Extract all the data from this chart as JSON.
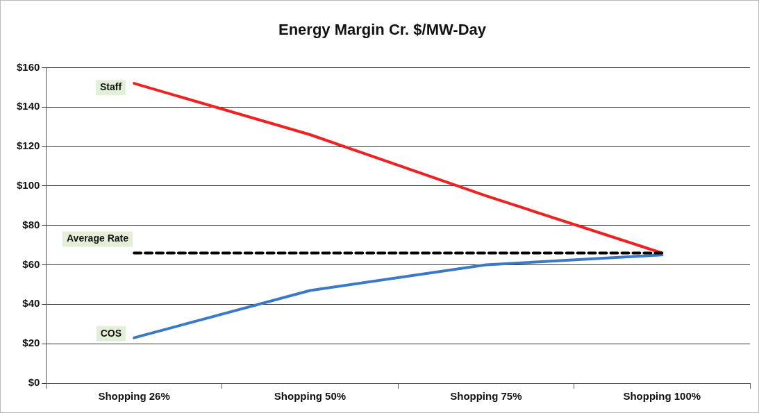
{
  "chart_data": {
    "type": "line",
    "title": "Energy Margin Cr. $/MW-Day",
    "categories": [
      "Shopping 26%",
      "Shopping 50%",
      "Shopping 75%",
      "Shopping 100%"
    ],
    "series": [
      {
        "name": "Staff",
        "color": "#ee2222",
        "values": [
          152,
          126,
          95,
          66
        ]
      },
      {
        "name": "Average Rate",
        "color": "#000000",
        "values": [
          66,
          66,
          66,
          66
        ],
        "line_style": "dashed"
      },
      {
        "name": "COS",
        "color": "#3a78c8",
        "values": [
          23,
          47,
          60,
          65
        ]
      }
    ],
    "ylim": [
      0,
      160
    ],
    "yticks": [
      {
        "value": 0,
        "label": "$0"
      },
      {
        "value": 20,
        "label": "$20"
      },
      {
        "value": 40,
        "label": "$40"
      },
      {
        "value": 60,
        "label": "$60"
      },
      {
        "value": 80,
        "label": "$80"
      },
      {
        "value": 100,
        "label": "$100"
      },
      {
        "value": 120,
        "label": "$120"
      },
      {
        "value": 140,
        "label": "$140"
      },
      {
        "value": 160,
        "label": "$160"
      }
    ],
    "grid": "y",
    "legend": false,
    "marker": "none",
    "line_style": "solid"
  }
}
